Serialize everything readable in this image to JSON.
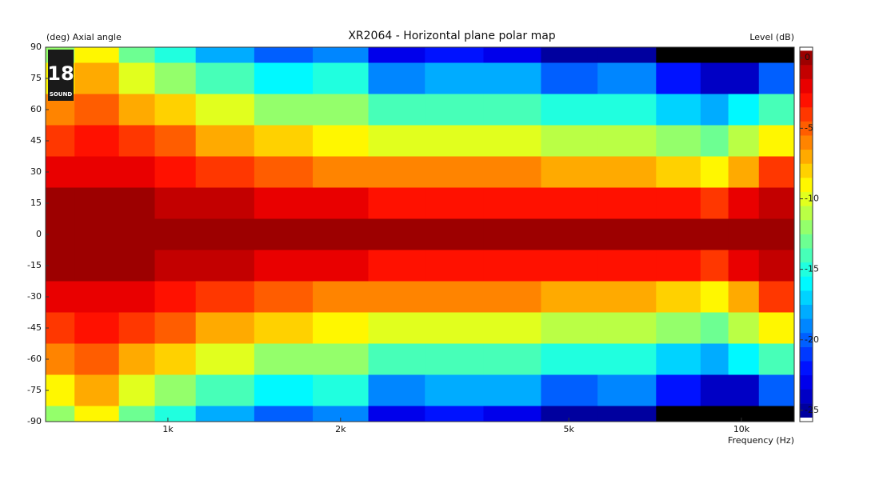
{
  "chart_data": {
    "type": "heatmap",
    "title": "XR2064 - Horizontal plane polar map",
    "y_label": "(deg)  Axial angle",
    "x_label": "Frequency  (Hz)",
    "colorbar_label": "Level  (dB)",
    "logo": {
      "number": "18",
      "text": "SOUND"
    },
    "log_x": true,
    "colormap": "jet",
    "under_color": "#000000",
    "x": [
      630,
      750,
      900,
      1000,
      1250,
      1600,
      2000,
      2500,
      3150,
      4000,
      5000,
      6300,
      8000,
      9000,
      10000,
      11500
    ],
    "y": [
      90,
      75,
      60,
      45,
      30,
      15,
      0,
      -15,
      -30,
      -45,
      -60,
      -75,
      -90
    ],
    "z": [
      [
        -12,
        -9,
        -13,
        -15,
        -18,
        -20,
        -19,
        -23,
        -22,
        -23,
        -25,
        -25,
        -27,
        -28,
        -28,
        -26
      ],
      [
        -9,
        -7,
        -10,
        -12,
        -14,
        -16,
        -15,
        -19,
        -18,
        -18,
        -20,
        -19,
        -22,
        -24,
        -24,
        -20
      ],
      [
        -6,
        -5,
        -7,
        -8,
        -10,
        -12,
        -12,
        -14,
        -14,
        -14,
        -15,
        -15,
        -17,
        -18,
        -16,
        -14
      ],
      [
        -4,
        -3,
        -4,
        -5,
        -7,
        -8,
        -9,
        -10,
        -10,
        -10,
        -11,
        -11,
        -12,
        -13,
        -11,
        -9
      ],
      [
        -2,
        -2,
        -2,
        -3,
        -4,
        -5,
        -6,
        -6,
        -6,
        -6,
        -7,
        -7,
        -8,
        -9,
        -7,
        -4
      ],
      [
        0,
        0,
        0,
        -1,
        -1,
        -2,
        -2,
        -3,
        -3,
        -3,
        -3,
        -3,
        -3,
        -4,
        -2,
        -1
      ],
      [
        0,
        0,
        0,
        0,
        0,
        0,
        0,
        0,
        0,
        0,
        0,
        0,
        0,
        0,
        0,
        0
      ],
      [
        0,
        0,
        0,
        -1,
        -1,
        -2,
        -2,
        -3,
        -3,
        -3,
        -3,
        -3,
        -3,
        -4,
        -2,
        -1
      ],
      [
        -2,
        -2,
        -2,
        -3,
        -4,
        -5,
        -6,
        -6,
        -6,
        -6,
        -7,
        -7,
        -8,
        -9,
        -7,
        -4
      ],
      [
        -4,
        -3,
        -4,
        -5,
        -7,
        -8,
        -9,
        -10,
        -10,
        -10,
        -11,
        -11,
        -12,
        -13,
        -11,
        -9
      ],
      [
        -6,
        -5,
        -7,
        -8,
        -10,
        -12,
        -12,
        -14,
        -14,
        -14,
        -15,
        -15,
        -17,
        -18,
        -16,
        -14
      ],
      [
        -9,
        -7,
        -10,
        -12,
        -14,
        -16,
        -15,
        -19,
        -18,
        -18,
        -20,
        -19,
        -22,
        -24,
        -24,
        -20
      ],
      [
        -12,
        -9,
        -13,
        -15,
        -18,
        -20,
        -19,
        -23,
        -22,
        -23,
        -25,
        -25,
        -27,
        -28,
        -28,
        -26
      ]
    ],
    "xlim": [
      612,
      12360
    ],
    "xticks": [
      {
        "value": 1000,
        "label": "1k"
      },
      {
        "value": 2000,
        "label": "2k"
      },
      {
        "value": 5000,
        "label": "5k"
      },
      {
        "value": 10000,
        "label": "10k"
      }
    ],
    "ylim": [
      -90,
      90
    ],
    "yticks": [
      90,
      75,
      60,
      45,
      30,
      15,
      0,
      -15,
      -30,
      -45,
      -60,
      -75,
      -90
    ],
    "clim": [
      -25.8,
      0.75
    ],
    "cticks": [
      0,
      -5,
      -10,
      -15,
      -20,
      -25
    ]
  }
}
